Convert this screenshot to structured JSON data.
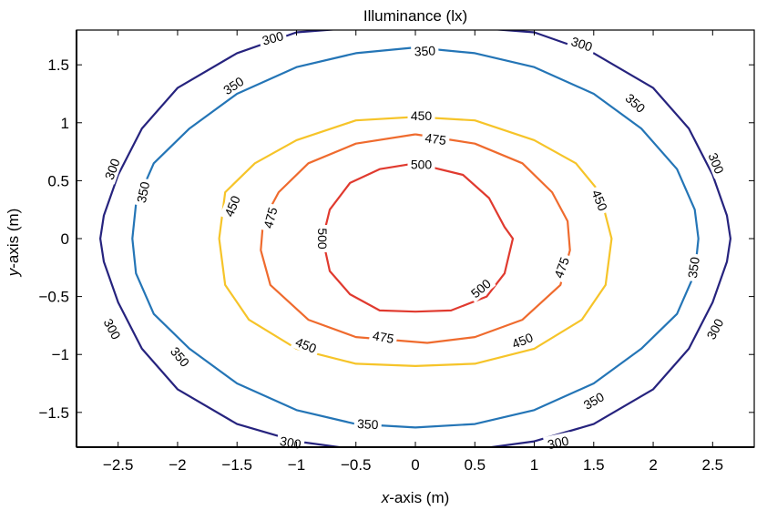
{
  "chart_data": {
    "type": "contour",
    "title": "Illuminance (lx)",
    "xlabel_var": "x",
    "xlabel_rest": "-axis (m)",
    "ylabel_var": "y",
    "ylabel_rest": "-axis (m)",
    "xlim": [
      -2.85,
      2.85
    ],
    "ylim": [
      -1.8,
      1.8
    ],
    "xticks": [
      -2.5,
      -2,
      -1.5,
      -1,
      -0.5,
      0,
      0.5,
      1,
      1.5,
      2,
      2.5
    ],
    "xtick_labels": [
      "−2.5",
      "−2",
      "−1.5",
      "−1",
      "−0.5",
      "0",
      "0.5",
      "1",
      "1.5",
      "2",
      "2.5"
    ],
    "yticks": [
      -1.5,
      -1,
      -0.5,
      0,
      0.5,
      1,
      1.5
    ],
    "ytick_labels": [
      "−1.5",
      "−1",
      "−0.5",
      "0",
      "0.5",
      "1",
      "1.5"
    ],
    "grid": false,
    "levels": [
      {
        "value": 300,
        "label": "300",
        "color": "#26237e",
        "points": [
          [
            -0.5,
            1.82
          ],
          [
            -1.0,
            1.78
          ],
          [
            -1.5,
            1.6
          ],
          [
            -2.0,
            1.3
          ],
          [
            -2.3,
            0.95
          ],
          [
            -2.5,
            0.55
          ],
          [
            -2.62,
            0.2
          ],
          [
            -2.65,
            0
          ],
          [
            -2.62,
            -0.2
          ],
          [
            -2.5,
            -0.55
          ],
          [
            -2.3,
            -0.95
          ],
          [
            -2.0,
            -1.3
          ],
          [
            -1.5,
            -1.6
          ],
          [
            -1.0,
            -1.75
          ],
          [
            -0.5,
            -1.82
          ]
        ],
        "points2": [
          [
            0.5,
            1.82
          ],
          [
            1.0,
            1.78
          ],
          [
            1.5,
            1.6
          ],
          [
            2.0,
            1.3
          ],
          [
            2.3,
            0.95
          ],
          [
            2.5,
            0.55
          ],
          [
            2.62,
            0.2
          ],
          [
            2.65,
            0
          ],
          [
            2.62,
            -0.2
          ],
          [
            2.5,
            -0.55
          ],
          [
            2.3,
            -0.95
          ],
          [
            2.0,
            -1.3
          ],
          [
            1.5,
            -1.6
          ],
          [
            1.0,
            -1.75
          ],
          [
            0.5,
            -1.82
          ]
        ],
        "labels": [
          {
            "x": -1.2,
            "y": 1.73,
            "rot": -15
          },
          {
            "x": -2.55,
            "y": 0.6,
            "rot": -70
          },
          {
            "x": -2.55,
            "y": -0.78,
            "rot": 62
          },
          {
            "x": -1.05,
            "y": -1.76,
            "rot": 10
          },
          {
            "x": 1.4,
            "y": 1.68,
            "rot": 18
          },
          {
            "x": 2.53,
            "y": 0.65,
            "rot": 68
          },
          {
            "x": 2.52,
            "y": -0.78,
            "rot": -62
          },
          {
            "x": 1.2,
            "y": -1.76,
            "rot": -12
          }
        ]
      },
      {
        "value": 350,
        "label": "350",
        "color": "#2475b6",
        "points": [
          [
            0,
            1.65
          ],
          [
            0.5,
            1.6
          ],
          [
            1.0,
            1.48
          ],
          [
            1.5,
            1.25
          ],
          [
            1.9,
            0.95
          ],
          [
            2.2,
            0.6
          ],
          [
            2.35,
            0.25
          ],
          [
            2.38,
            0
          ],
          [
            2.35,
            -0.3
          ],
          [
            2.2,
            -0.65
          ],
          [
            1.9,
            -0.95
          ],
          [
            1.5,
            -1.25
          ],
          [
            1.0,
            -1.48
          ],
          [
            0.5,
            -1.6
          ],
          [
            0,
            -1.63
          ],
          [
            -0.5,
            -1.6
          ],
          [
            -1.0,
            -1.48
          ],
          [
            -1.5,
            -1.25
          ],
          [
            -1.9,
            -0.95
          ],
          [
            -2.2,
            -0.65
          ],
          [
            -2.35,
            -0.3
          ],
          [
            -2.38,
            0
          ],
          [
            -2.35,
            0.3
          ],
          [
            -2.2,
            0.65
          ],
          [
            -1.9,
            0.95
          ],
          [
            -1.5,
            1.25
          ],
          [
            -1.0,
            1.48
          ],
          [
            -0.5,
            1.6
          ],
          [
            0,
            1.65
          ]
        ],
        "labels": [
          [
            0.08,
            1.62,
            -3
          ],
          [
            -1.53,
            1.32,
            -33
          ],
          [
            -2.29,
            0.4,
            -78
          ],
          [
            -1.98,
            -1.02,
            50
          ],
          [
            -0.4,
            -1.6,
            3
          ],
          [
            1.85,
            1.17,
            42
          ],
          [
            2.34,
            -0.25,
            -82
          ],
          [
            1.5,
            -1.4,
            -30
          ]
        ]
      },
      {
        "value": 450,
        "label": "450",
        "color": "#f6c429",
        "points": [
          [
            0,
            1.05
          ],
          [
            0.5,
            1.02
          ],
          [
            1.0,
            0.85
          ],
          [
            1.35,
            0.65
          ],
          [
            1.55,
            0.4
          ],
          [
            1.65,
            0.0
          ],
          [
            1.6,
            -0.4
          ],
          [
            1.4,
            -0.7
          ],
          [
            1.0,
            -0.95
          ],
          [
            0.5,
            -1.08
          ],
          [
            0,
            -1.1
          ],
          [
            -0.5,
            -1.08
          ],
          [
            -1.0,
            -0.95
          ],
          [
            -1.4,
            -0.7
          ],
          [
            -1.6,
            -0.4
          ],
          [
            -1.65,
            0
          ],
          [
            -1.6,
            0.4
          ],
          [
            -1.35,
            0.65
          ],
          [
            -1.0,
            0.85
          ],
          [
            -0.5,
            1.02
          ],
          [
            0,
            1.05
          ]
        ],
        "labels": [
          [
            0.05,
            1.06,
            0
          ],
          [
            -1.54,
            0.28,
            -68
          ],
          [
            -0.92,
            -0.92,
            22
          ],
          [
            1.55,
            0.33,
            68
          ],
          [
            0.9,
            -0.88,
            -22
          ]
        ]
      },
      {
        "value": 475,
        "label": "475",
        "color": "#ef6b2e",
        "points": [
          [
            0,
            0.9
          ],
          [
            0.5,
            0.82
          ],
          [
            0.9,
            0.65
          ],
          [
            1.15,
            0.4
          ],
          [
            1.28,
            0.15
          ],
          [
            1.3,
            -0.1
          ],
          [
            1.22,
            -0.4
          ],
          [
            0.9,
            -0.7
          ],
          [
            0.5,
            -0.85
          ],
          [
            0.1,
            -0.9
          ],
          [
            -0.5,
            -0.85
          ],
          [
            -0.9,
            -0.7
          ],
          [
            -1.22,
            -0.4
          ],
          [
            -1.3,
            -0.1
          ],
          [
            -1.28,
            0.15
          ],
          [
            -1.15,
            0.4
          ],
          [
            -0.9,
            0.65
          ],
          [
            -0.5,
            0.82
          ],
          [
            0,
            0.9
          ]
        ],
        "labels": [
          [
            0.17,
            0.86,
            8
          ],
          [
            -1.22,
            0.18,
            -75
          ],
          [
            -0.27,
            -0.85,
            10
          ],
          [
            1.23,
            -0.25,
            -70
          ]
        ]
      },
      {
        "value": 500,
        "label": "500",
        "color": "#e03a2f",
        "points": [
          [
            0,
            0.65
          ],
          [
            0.4,
            0.55
          ],
          [
            0.62,
            0.35
          ],
          [
            0.75,
            0.1
          ],
          [
            0.82,
            0.0
          ],
          [
            0.75,
            -0.3
          ],
          [
            0.6,
            -0.5
          ],
          [
            0.3,
            -0.62
          ],
          [
            0,
            -0.63
          ],
          [
            -0.3,
            -0.62
          ],
          [
            -0.55,
            -0.48
          ],
          [
            -0.72,
            -0.28
          ],
          [
            -0.78,
            0
          ],
          [
            -0.72,
            0.25
          ],
          [
            -0.55,
            0.48
          ],
          [
            -0.3,
            0.6
          ],
          [
            0,
            0.65
          ]
        ],
        "labels": [
          [
            0.05,
            0.64,
            0
          ],
          [
            -0.78,
            0.0,
            90
          ],
          [
            0.55,
            -0.43,
            -40
          ]
        ]
      }
    ]
  }
}
